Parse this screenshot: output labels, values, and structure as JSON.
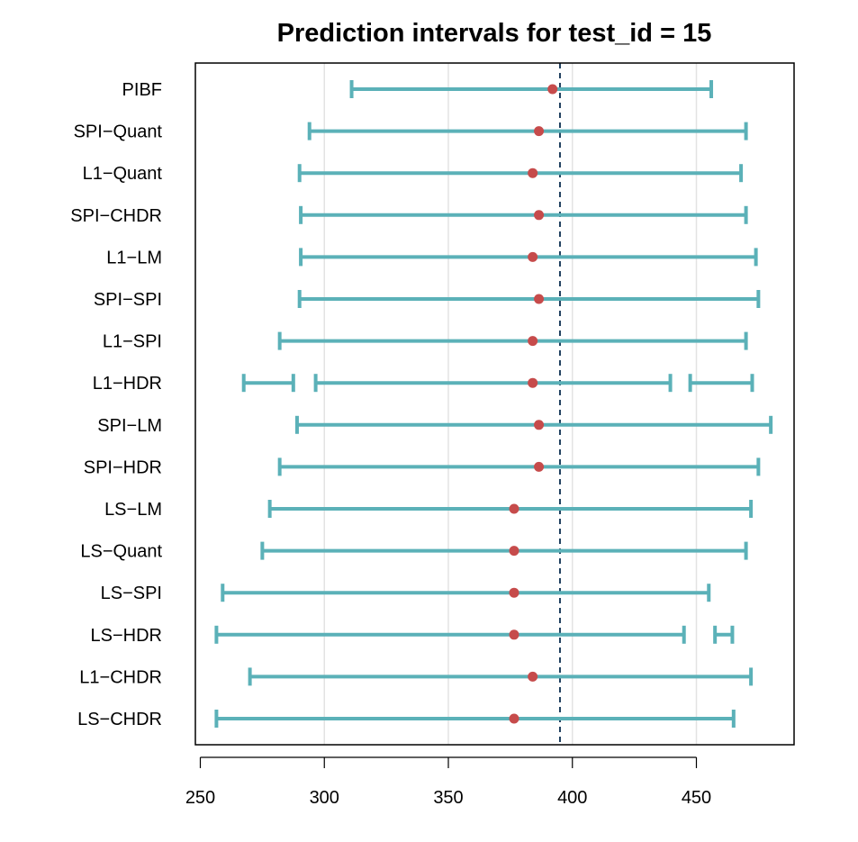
{
  "chart_data": {
    "type": "interval",
    "title": "Prediction intervals for test_id = 15",
    "xlabel": "",
    "ylabel": "",
    "xlim": [
      248,
      488
    ],
    "x_ticks": [
      250,
      300,
      350,
      400,
      450
    ],
    "grid": "vertical",
    "reference_line": {
      "x": 395,
      "style": "dashed",
      "color": "#1f3f5f"
    },
    "colors": {
      "interval": "#5bb1b8",
      "point": "#c64b4b",
      "grid": "#e3e3e3"
    },
    "series": [
      {
        "name": "PIBF",
        "point": 392,
        "intervals": [
          [
            311,
            456
          ]
        ]
      },
      {
        "name": "SPI−Quant",
        "point": 386.5,
        "intervals": [
          [
            294,
            470
          ]
        ]
      },
      {
        "name": "L1−Quant",
        "point": 384,
        "intervals": [
          [
            290,
            468
          ]
        ]
      },
      {
        "name": "SPI−CHDR",
        "point": 386.5,
        "intervals": [
          [
            290.5,
            470
          ]
        ]
      },
      {
        "name": "L1−LM",
        "point": 384,
        "intervals": [
          [
            290.5,
            474
          ]
        ]
      },
      {
        "name": "SPI−SPI",
        "point": 386.5,
        "intervals": [
          [
            290,
            475
          ]
        ]
      },
      {
        "name": "L1−SPI",
        "point": 384,
        "intervals": [
          [
            282,
            470
          ]
        ]
      },
      {
        "name": "L1−HDR",
        "point": 384,
        "intervals": [
          [
            267.5,
            287.5
          ],
          [
            296.5,
            439.5
          ],
          [
            447.5,
            472.5
          ]
        ]
      },
      {
        "name": "SPI−LM",
        "point": 386.5,
        "intervals": [
          [
            289,
            480
          ]
        ]
      },
      {
        "name": "SPI−HDR",
        "point": 386.5,
        "intervals": [
          [
            282,
            475
          ]
        ]
      },
      {
        "name": "LS−LM",
        "point": 376.5,
        "intervals": [
          [
            278,
            472
          ]
        ]
      },
      {
        "name": "LS−Quant",
        "point": 376.5,
        "intervals": [
          [
            275,
            470
          ]
        ]
      },
      {
        "name": "LS−SPI",
        "point": 376.5,
        "intervals": [
          [
            259,
            455
          ]
        ]
      },
      {
        "name": "LS−HDR",
        "point": 376.5,
        "intervals": [
          [
            256.5,
            445
          ],
          [
            457.5,
            464.5
          ]
        ]
      },
      {
        "name": "L1−CHDR",
        "point": 384,
        "intervals": [
          [
            270,
            472
          ]
        ]
      },
      {
        "name": "LS−CHDR",
        "point": 376.5,
        "intervals": [
          [
            256.5,
            465
          ]
        ]
      }
    ]
  }
}
